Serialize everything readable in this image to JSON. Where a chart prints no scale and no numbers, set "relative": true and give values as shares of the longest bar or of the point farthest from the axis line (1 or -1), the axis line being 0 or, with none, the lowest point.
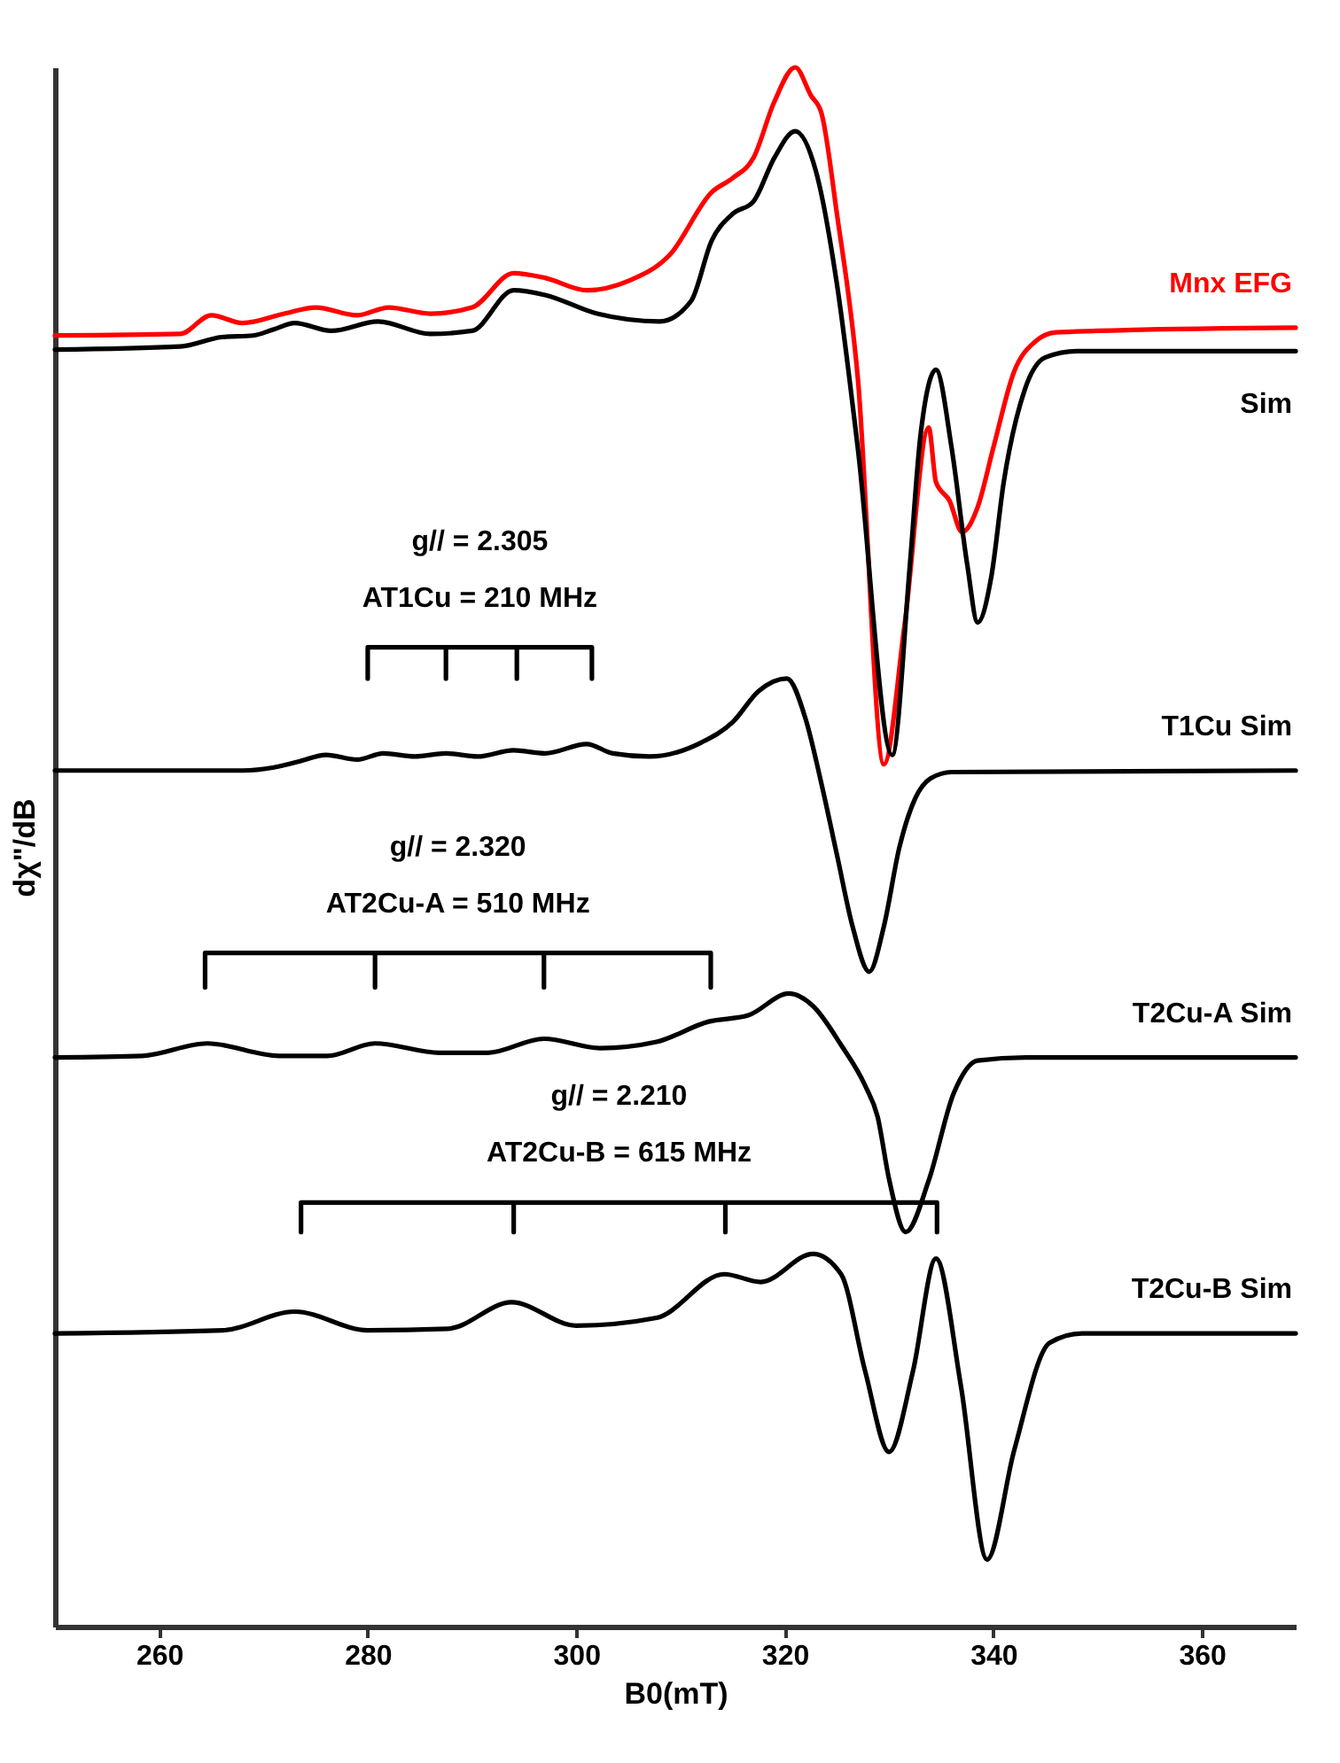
{
  "chart_data": {
    "type": "line",
    "relative": true,
    "xlabel": "B0(mT)",
    "ylabel": "dχ\"/dB",
    "xlim": [
      250,
      369
    ],
    "xticks": [
      260,
      280,
      300,
      320,
      340,
      360
    ],
    "grid": false,
    "marker": "none",
    "line_style": "solid",
    "series": [
      {
        "name": "Mnx EFG",
        "color": "#ff0000",
        "x": [
          250,
          262,
          265,
          268,
          272,
          275,
          279,
          282,
          286,
          290,
          294,
          297,
          301,
          305,
          309,
          313,
          315,
          317,
          319,
          321,
          322.5,
          323.5,
          325,
          327,
          329.5,
          331.5,
          333.8,
          334.5,
          335.8,
          337,
          338.5,
          340,
          342,
          344,
          346,
          350,
          369
        ],
        "values": [
          0.828,
          0.829,
          0.841,
          0.836,
          0.842,
          0.846,
          0.841,
          0.846,
          0.842,
          0.846,
          0.868,
          0.865,
          0.857,
          0.863,
          0.88,
          0.92,
          0.929,
          0.942,
          0.978,
          1.0,
          0.982,
          0.971,
          0.906,
          0.801,
          0.553,
          0.643,
          0.769,
          0.734,
          0.722,
          0.702,
          0.718,
          0.756,
          0.805,
          0.824,
          0.83,
          0.831,
          0.833
        ]
      },
      {
        "name": "Sim",
        "color": "#000000",
        "x": [
          250,
          262,
          266,
          269,
          271,
          273,
          276.5,
          281,
          286,
          290,
          294,
          297,
          302,
          308,
          311,
          313,
          315,
          317,
          319,
          321,
          323,
          325,
          327,
          330.3,
          332,
          333,
          334.5,
          336,
          337.5,
          338.5,
          339.8,
          341,
          343,
          345,
          348,
          369
        ],
        "values": [
          0.819,
          0.821,
          0.827,
          0.828,
          0.832,
          0.836,
          0.831,
          0.837,
          0.829,
          0.831,
          0.857,
          0.854,
          0.842,
          0.837,
          0.85,
          0.889,
          0.906,
          0.914,
          0.942,
          0.959,
          0.933,
          0.861,
          0.756,
          0.559,
          0.681,
          0.763,
          0.806,
          0.756,
          0.681,
          0.644,
          0.673,
          0.734,
          0.793,
          0.814,
          0.818,
          0.818
        ]
      },
      {
        "name": "T1Cu Sim",
        "color": "#000000",
        "x": [
          250,
          268,
          271,
          273.5,
          276,
          279,
          281.5,
          284.5,
          287.5,
          290.5,
          294,
          297,
          301,
          303.5,
          307,
          312,
          315,
          317.5,
          320.2,
          322,
          323.5,
          325,
          326.5,
          328.1,
          329.5,
          331,
          332.5,
          334,
          336,
          369
        ],
        "values": [
          0.549,
          0.549,
          0.551,
          0.555,
          0.559,
          0.556,
          0.56,
          0.558,
          0.56,
          0.558,
          0.562,
          0.56,
          0.566,
          0.56,
          0.558,
          0.567,
          0.58,
          0.6,
          0.608,
          0.582,
          0.541,
          0.495,
          0.449,
          0.42,
          0.449,
          0.5,
          0.531,
          0.544,
          0.548,
          0.549
        ]
      },
      {
        "name": "T2Cu-A Sim",
        "color": "#000000",
        "x": [
          250,
          258.4,
          264.6,
          271.5,
          276.1,
          280.7,
          286.9,
          291.5,
          296.9,
          302.3,
          307.7,
          312.7,
          316.5,
          320.4,
          322.7,
          325.4,
          327.7,
          328.9,
          330,
          331.6,
          333.8,
          336.2,
          338.5,
          343.1,
          369
        ],
        "values": [
          0.365,
          0.366,
          0.374,
          0.366,
          0.366,
          0.374,
          0.368,
          0.368,
          0.377,
          0.371,
          0.375,
          0.388,
          0.392,
          0.406,
          0.398,
          0.373,
          0.347,
          0.327,
          0.287,
          0.253,
          0.286,
          0.342,
          0.363,
          0.365,
          0.365
        ]
      },
      {
        "name": "T2Cu-B Sim",
        "color": "#000000",
        "x": [
          250,
          266.1,
          273,
          280,
          287.7,
          293.8,
          300,
          307.7,
          314.2,
          317.7,
          322.7,
          325.4,
          327.7,
          330,
          332.3,
          334.5,
          336.9,
          339.4,
          342,
          345.4,
          348.5,
          369
        ],
        "values": [
          0.188,
          0.19,
          0.202,
          0.19,
          0.191,
          0.208,
          0.193,
          0.198,
          0.226,
          0.221,
          0.239,
          0.226,
          0.164,
          0.112,
          0.164,
          0.236,
          0.154,
          0.043,
          0.113,
          0.182,
          0.188,
          0.188
        ]
      },
      {
        "color": "#000000",
        "x": [
          280,
          280,
          287.5,
          287.5,
          287.5,
          294.3,
          294.3,
          294.3,
          301.5,
          301.5
        ],
        "values": [
          0.608,
          0.628,
          0.628,
          0.608,
          0.628,
          0.628,
          0.608,
          0.628,
          0.628,
          0.608
        ]
      },
      {
        "color": "#000000",
        "x": [
          264.4,
          264.4,
          280.7,
          280.7,
          280.7,
          296.9,
          296.9,
          296.9,
          312.9,
          312.9
        ],
        "values": [
          0.41,
          0.432,
          0.432,
          0.41,
          0.432,
          0.432,
          0.41,
          0.432,
          0.432,
          0.41
        ]
      },
      {
        "color": "#000000",
        "x": [
          273.6,
          273.6,
          294,
          294,
          294,
          314.3,
          314.3,
          314.3,
          334.6,
          334.6
        ],
        "values": [
          0.253,
          0.272,
          0.272,
          0.253,
          0.272,
          0.272,
          0.253,
          0.272,
          0.272,
          0.253
        ]
      }
    ],
    "annotations": [
      "g// = 2.305",
      "AT1Cu = 210 MHz",
      "g// = 2.320",
      "AT2Cu-A = 510 MHz",
      "g// = 2.210",
      "AT2Cu-B = 615 MHz"
    ]
  }
}
